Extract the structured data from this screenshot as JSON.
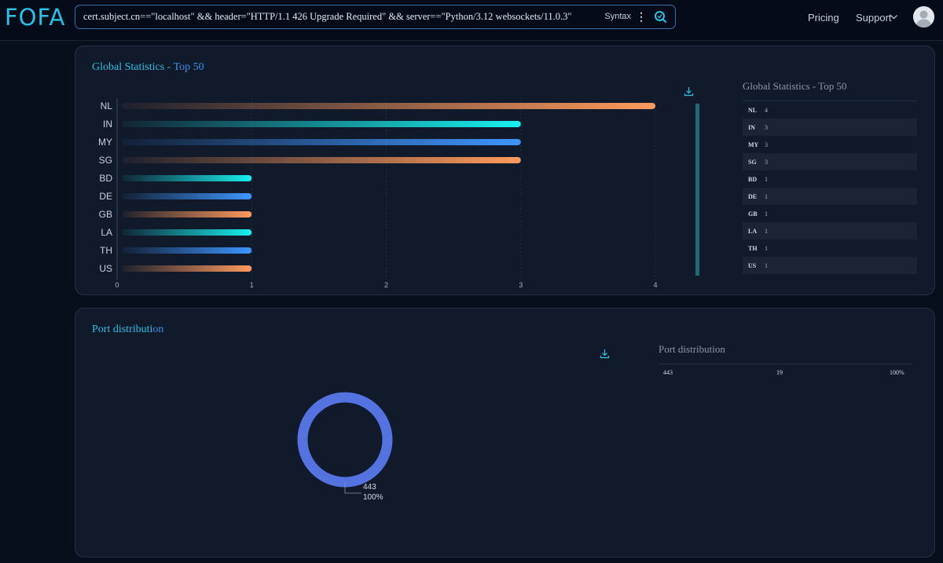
{
  "header": {
    "logo_text": "FOFA",
    "search_query": "cert.subject.cn==\"localhost\" && header=\"HTTP/1.1 426 Upgrade Required\" && server==\"Python/3.12 websockets/11.0.3\"",
    "syntax_label": "Syntax",
    "more_icon": "⋮",
    "nav_pricing": "Pricing",
    "nav_support": "Support"
  },
  "global_stats": {
    "title_main": "Global Statistics - ",
    "title_highlight": "Top 50",
    "side_title": "Global Statistics - Top 50",
    "rows": [
      {
        "country": "NL",
        "count": "4"
      },
      {
        "country": "IN",
        "count": "3"
      },
      {
        "country": "MY",
        "count": "3"
      },
      {
        "country": "SG",
        "count": "3"
      },
      {
        "country": "BD",
        "count": "1"
      },
      {
        "country": "DE",
        "count": "1"
      },
      {
        "country": "GB",
        "count": "1"
      },
      {
        "country": "LA",
        "count": "1"
      },
      {
        "country": "TH",
        "count": "1"
      },
      {
        "country": "US",
        "count": "1"
      }
    ]
  },
  "port_distribution": {
    "title_main": "Port distributi",
    "title_highlight": "on",
    "side_title": "Port distribution",
    "row": {
      "port": "443",
      "count": "19",
      "percent": "100%"
    },
    "donut_label": "443",
    "donut_percent": "100%"
  },
  "chart_data": [
    {
      "type": "bar",
      "orientation": "horizontal",
      "categories": [
        "NL",
        "IN",
        "MY",
        "SG",
        "BD",
        "DE",
        "GB",
        "LA",
        "TH",
        "US"
      ],
      "values": [
        4,
        3,
        3,
        3,
        1,
        1,
        1,
        1,
        1,
        1
      ],
      "title": "Global Statistics - Top 50",
      "xlim": [
        0,
        4
      ],
      "xticks": [
        "0",
        "1",
        "2",
        "3",
        "4"
      ],
      "grid": true,
      "colors": [
        "#ff9a5c",
        "#18f0ee",
        "#3e95ff",
        "#ff9a5c",
        "#18f0ee",
        "#3e95ff",
        "#ff9a5c",
        "#18f0ee",
        "#3e95ff",
        "#ff9a5c"
      ]
    },
    {
      "type": "pie",
      "style": "donut",
      "labels": [
        "443"
      ],
      "values": [
        19
      ],
      "percents": [
        "100%"
      ],
      "title": "Port distribution",
      "colors": [
        "#5472e0"
      ]
    }
  ],
  "colors": {
    "accent": "#2bbfe0",
    "highlight": "#3d8fe8",
    "background": "#070e1c",
    "panel": "#111a2b"
  }
}
